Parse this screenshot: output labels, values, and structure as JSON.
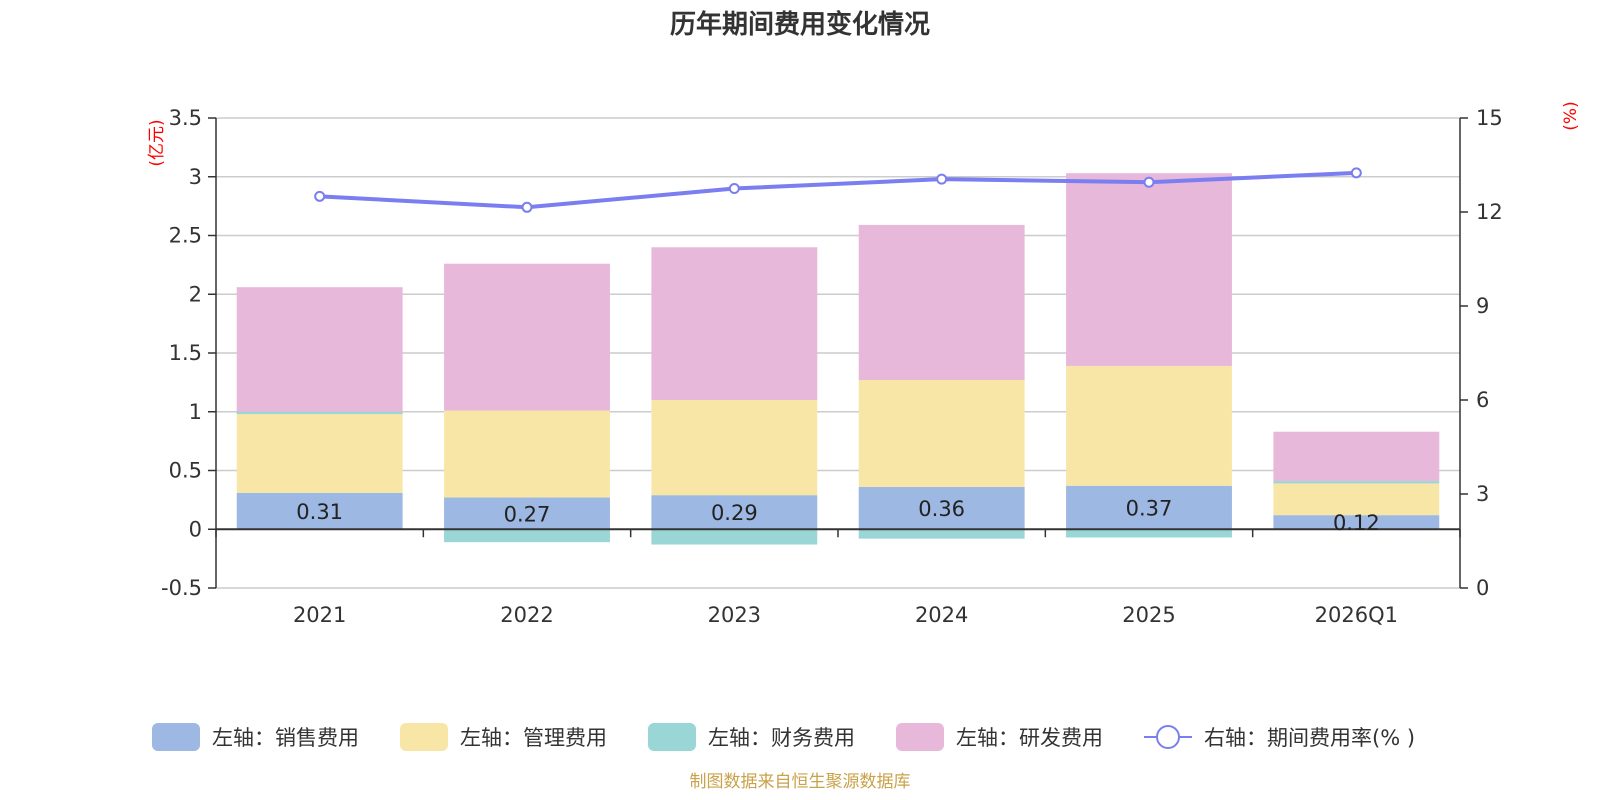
{
  "chart_data": {
    "type": "bar",
    "stacked": true,
    "title": "历年期间费用变化情况",
    "left_unit": "(亿元)",
    "right_unit": "(%)",
    "categories": [
      "2021",
      "2022",
      "2023",
      "2024",
      "2025",
      "2026Q1"
    ],
    "left_axis": {
      "min": -0.5,
      "max": 3.5,
      "ticks": [
        "3.5",
        "3",
        "2.5",
        "2",
        "1.5",
        "1",
        "0.5",
        "0",
        "-0.5"
      ],
      "tick_values": [
        3.5,
        3,
        2.5,
        2,
        1.5,
        1,
        0.5,
        0,
        -0.5
      ]
    },
    "right_axis": {
      "min": 0,
      "max": 15,
      "ticks": [
        "15",
        "12",
        "9",
        "6",
        "3",
        "0"
      ],
      "tick_values": [
        15,
        12,
        9,
        6,
        3,
        0
      ]
    },
    "series": [
      {
        "name": "左轴：销售费用",
        "color": "#9db8e2",
        "values": [
          0.31,
          0.27,
          0.29,
          0.36,
          0.37,
          0.12
        ],
        "labels": [
          "0.31",
          "0.27",
          "0.29",
          "0.36",
          "0.37",
          "0.12"
        ]
      },
      {
        "name": "左轴：管理费用",
        "color": "#f7e6a6",
        "values": [
          0.67,
          0.74,
          0.81,
          0.91,
          1.02,
          0.27
        ]
      },
      {
        "name": "左轴：财务费用",
        "color": "#9ad6d6",
        "values": [
          0.02,
          -0.11,
          -0.13,
          -0.08,
          -0.07,
          0.02
        ]
      },
      {
        "name": "左轴：研发费用",
        "color": "#e7b8d9",
        "values": [
          1.06,
          1.25,
          1.3,
          1.32,
          1.64,
          0.42
        ]
      }
    ],
    "line": {
      "name": "右轴：期间费用率(% )",
      "color": "#7b7ef0",
      "values": [
        12.5,
        12.15,
        12.75,
        13.05,
        12.95,
        13.25
      ]
    },
    "source": "制图数据来自恒生聚源数据库"
  }
}
